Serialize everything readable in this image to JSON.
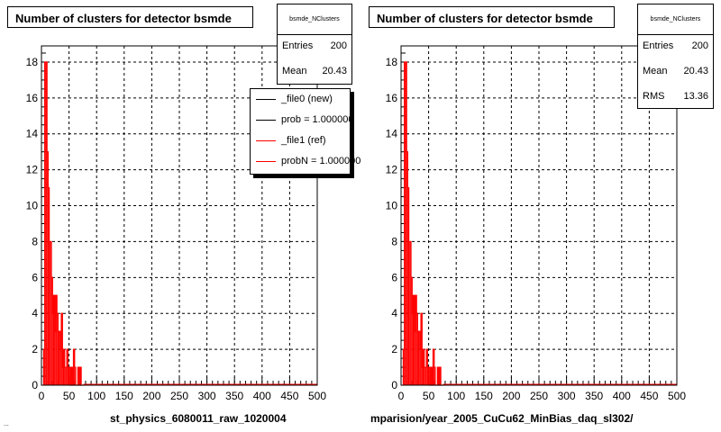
{
  "panels": [
    {
      "title": "Number of clusters for detector bsmde",
      "stats": {
        "name": "bsmde_NClusters",
        "entries_label": "Entries",
        "entries_value": "200",
        "mean_label": "Mean",
        "mean_value": "20.43"
      },
      "legend": [
        {
          "label": "_file0 (new)",
          "color": "#000000"
        },
        {
          "label": "prob = 1.000000",
          "color": "#000000"
        },
        {
          "label": "_file1 (ref)",
          "color": "#ff0000"
        },
        {
          "label": "probN = 1.000000",
          "color": "#ff0000"
        }
      ],
      "xtitle": "st_physics_6080011_raw_1020004"
    },
    {
      "title": "Number of clusters for detector bsmde",
      "stats": {
        "name": "bsmde_NClusters",
        "entries_label": "Entries",
        "entries_value": "200",
        "mean_label": "Mean",
        "mean_value": "20.43",
        "rms_label": "RMS",
        "rms_value": "13.36"
      },
      "xtitle": "mparision/year_2005_CuCu62_MinBias_daq_sl302/"
    }
  ],
  "footer_text": "...",
  "chart_data": [
    {
      "type": "histogram",
      "title": "Number of clusters for detector bsmde",
      "xlabel": "st_physics_6080011_raw_1020004",
      "ylabel": "",
      "xlim": [
        0,
        500
      ],
      "ylim": [
        0,
        18.9
      ],
      "xticks": [
        0,
        50,
        100,
        150,
        200,
        250,
        300,
        350,
        400,
        450,
        500
      ],
      "yticks": [
        0,
        2,
        4,
        6,
        8,
        10,
        12,
        14,
        16,
        18
      ],
      "grid": true,
      "bin_width": 2,
      "series": [
        {
          "name": "_file1 (ref)",
          "color": "#ff0000",
          "x": [
            4,
            6,
            8,
            10,
            12,
            14,
            16,
            18,
            20,
            22,
            24,
            26,
            28,
            30,
            32,
            34,
            36,
            38,
            40,
            42,
            44,
            46,
            48,
            50,
            52,
            54,
            56,
            58,
            60,
            62,
            64,
            66,
            68,
            70,
            72,
            74
          ],
          "y": [
            2,
            18,
            18,
            13,
            11,
            8,
            8,
            6,
            4,
            5,
            3,
            5,
            4,
            3,
            3,
            2,
            4,
            1,
            2,
            1,
            1,
            2,
            1,
            1,
            0,
            1,
            0,
            2,
            1,
            0,
            0,
            1,
            0,
            1,
            0,
            0
          ]
        }
      ]
    },
    {
      "type": "histogram",
      "title": "Number of clusters for detector bsmde",
      "xlabel": "mparision/year_2005_CuCu62_MinBias_daq_sl302/",
      "ylabel": "",
      "xlim": [
        0,
        500
      ],
      "ylim": [
        0,
        18.9
      ],
      "xticks": [
        0,
        50,
        100,
        150,
        200,
        250,
        300,
        350,
        400,
        450,
        500
      ],
      "yticks": [
        0,
        2,
        4,
        6,
        8,
        10,
        12,
        14,
        16,
        18
      ],
      "grid": true,
      "bin_width": 2,
      "series": [
        {
          "name": "",
          "color": "#ff0000",
          "x": [
            4,
            6,
            8,
            10,
            12,
            14,
            16,
            18,
            20,
            22,
            24,
            26,
            28,
            30,
            32,
            34,
            36,
            38,
            40,
            42,
            44,
            46,
            48,
            50,
            52,
            54,
            56,
            58,
            60,
            62,
            64,
            66,
            68,
            70,
            72,
            74
          ],
          "y": [
            2,
            18,
            18,
            13,
            11,
            8,
            8,
            6,
            4,
            5,
            3,
            5,
            4,
            3,
            3,
            2,
            4,
            1,
            2,
            1,
            1,
            2,
            1,
            1,
            0,
            1,
            0,
            2,
            1,
            0,
            0,
            1,
            0,
            1,
            0,
            0
          ]
        }
      ]
    }
  ]
}
